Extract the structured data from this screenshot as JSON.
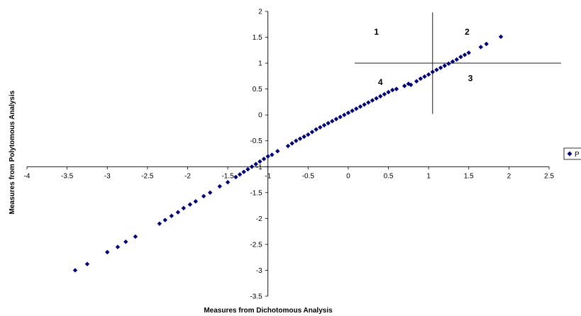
{
  "chart_data": {
    "type": "scatter",
    "xlabel": "Measures from Dichotomous Analysis",
    "ylabel": "Measures from Polytomous Analysis",
    "xlim": [
      -4,
      2.5
    ],
    "ylim": [
      -3.5,
      2
    ],
    "x_ticks": [
      -4,
      -3.5,
      -3,
      -2.5,
      -2,
      -1.5,
      -1,
      -0.5,
      0,
      0.5,
      1,
      1.5,
      2,
      2.5
    ],
    "x_tick_labels": [
      "-4",
      "-3.5",
      "-3",
      "-2.5",
      "-2",
      "-1.5",
      "-1",
      "-0.5",
      "0",
      "0.5",
      "1",
      "1.5",
      "2",
      "2.5"
    ],
    "y_ticks": [
      2,
      1.5,
      1,
      0.5,
      0,
      -0.5,
      -1,
      -1.5,
      -2,
      -2.5,
      -3,
      -3.5
    ],
    "y_tick_labels": [
      "2",
      "1.5",
      "1",
      "0.5",
      "0",
      "-0.5",
      "-1",
      "-1.5",
      "-2",
      "-2.5",
      "-3",
      "-3.5"
    ],
    "grid": false,
    "marker_color": "#000080",
    "legend": {
      "placement": "right",
      "entries": [
        {
          "label": "P"
        }
      ]
    },
    "reference_lines": [
      {
        "orientation": "vertical",
        "x": 1.05,
        "y_range": [
          0.02,
          1.98
        ]
      },
      {
        "orientation": "horizontal",
        "y": 1.0,
        "x_range": [
          0.08,
          2.65
        ]
      }
    ],
    "quadrant_labels": [
      {
        "text": "1",
        "x": 0.35,
        "y": 1.55
      },
      {
        "text": "2",
        "x": 1.48,
        "y": 1.55
      },
      {
        "text": "3",
        "x": 1.52,
        "y": 0.65
      },
      {
        "text": "4",
        "x": 0.4,
        "y": 0.58
      }
    ],
    "series": [
      {
        "x": [
          -3.4,
          -3.25,
          -3.0,
          -2.87,
          -2.77,
          -2.65,
          -2.35,
          -2.28,
          -2.2,
          -2.12,
          -2.05,
          -1.97,
          -1.9,
          -1.8,
          -1.72,
          -1.6,
          -1.5,
          -1.4,
          -1.35,
          -1.3,
          -1.25,
          -1.2,
          -1.15,
          -1.1,
          -1.05,
          -1.0,
          -0.95,
          -0.88,
          -0.75,
          -0.7,
          -0.65,
          -0.6,
          -0.55,
          -0.5,
          -0.45,
          -0.4,
          -0.35,
          -0.3,
          -0.25,
          -0.2,
          -0.15,
          -0.1,
          -0.05,
          0.0,
          0.05,
          0.1,
          0.15,
          0.2,
          0.25,
          0.3,
          0.35,
          0.4,
          0.45,
          0.5,
          0.55,
          0.6,
          0.7,
          0.75,
          0.78,
          0.85,
          0.9,
          0.95,
          1.0,
          1.05,
          1.1,
          1.15,
          1.2,
          1.25,
          1.3,
          1.35,
          1.4,
          1.45,
          1.5,
          1.65,
          1.72,
          1.9
        ],
        "y": [
          -3.0,
          -2.88,
          -2.65,
          -2.55,
          -2.45,
          -2.35,
          -2.1,
          -2.03,
          -1.95,
          -1.88,
          -1.8,
          -1.73,
          -1.67,
          -1.57,
          -1.5,
          -1.38,
          -1.3,
          -1.2,
          -1.15,
          -1.1,
          -1.05,
          -1.0,
          -0.95,
          -0.9,
          -0.85,
          -0.8,
          -0.77,
          -0.7,
          -0.6,
          -0.55,
          -0.5,
          -0.46,
          -0.42,
          -0.38,
          -0.33,
          -0.28,
          -0.24,
          -0.2,
          -0.16,
          -0.12,
          -0.08,
          -0.04,
          0.0,
          0.04,
          0.08,
          0.12,
          0.16,
          0.2,
          0.24,
          0.28,
          0.32,
          0.36,
          0.4,
          0.44,
          0.48,
          0.5,
          0.56,
          0.6,
          0.58,
          0.65,
          0.7,
          0.74,
          0.78,
          0.83,
          0.87,
          0.91,
          0.95,
          0.99,
          1.03,
          1.07,
          1.12,
          1.16,
          1.2,
          1.31,
          1.37,
          1.51
        ]
      }
    ]
  }
}
